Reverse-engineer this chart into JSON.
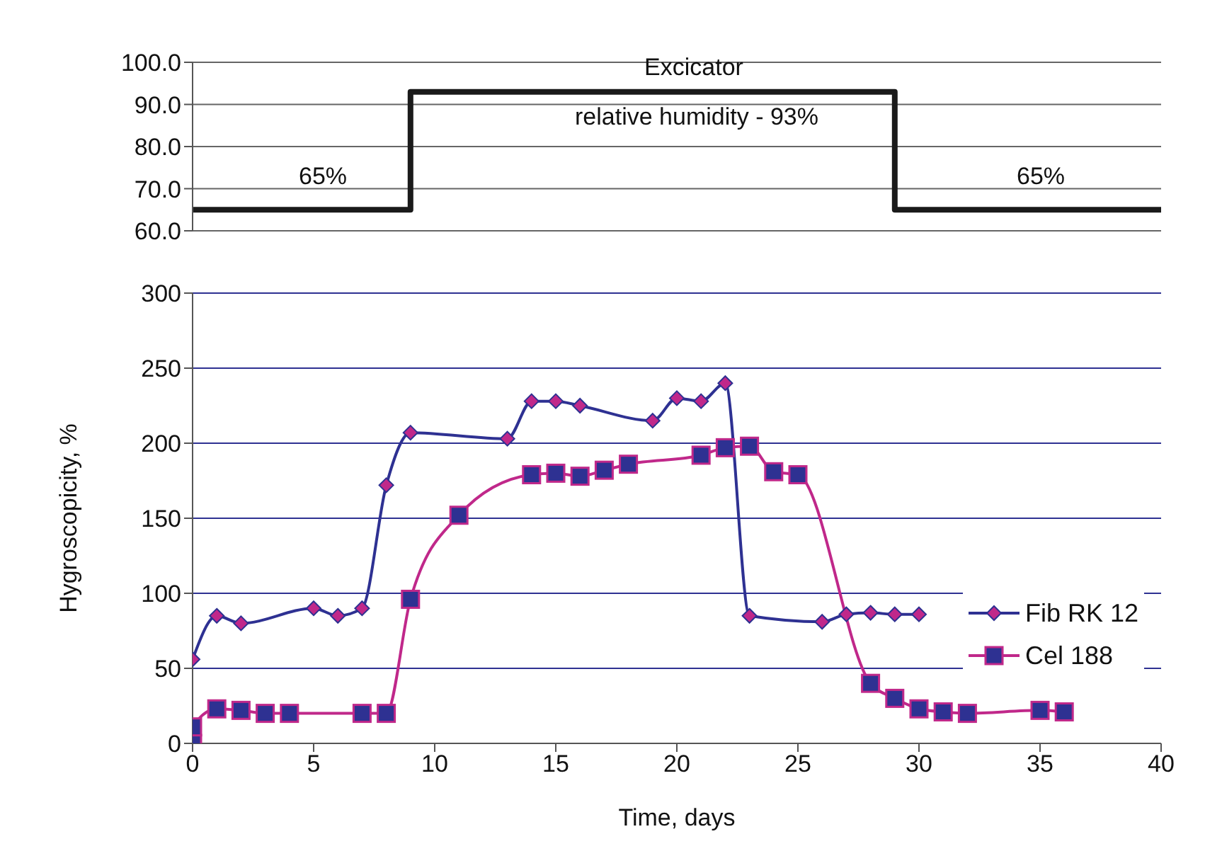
{
  "chart_data": [
    {
      "type": "step",
      "xlim": [
        0,
        40
      ],
      "ylim": [
        60,
        100
      ],
      "yticks": [
        {
          "value": 60,
          "label": "60.0"
        },
        {
          "value": 70,
          "label": "70.0"
        },
        {
          "value": 80,
          "label": "80.0"
        },
        {
          "value": 90,
          "label": "90.0"
        },
        {
          "value": 100,
          "label": "100.0"
        }
      ],
      "tick_labels": "y",
      "grid": "y",
      "legend": false,
      "marker": "none",
      "series": [
        {
          "color": "#1a1a1a",
          "x": [
            0,
            9,
            29,
            40
          ],
          "values": [
            65,
            93,
            65,
            65
          ]
        }
      ],
      "annotations": [
        "65%",
        "Excicator",
        "relative humidity - 93%",
        "65%"
      ]
    },
    {
      "type": "line",
      "xlabel": "Time, days",
      "ylabel": "Hygroscopicity, %",
      "xlim": [
        0,
        40
      ],
      "xticks": [
        0,
        5,
        10,
        15,
        20,
        25,
        30,
        35,
        40
      ],
      "ylim": [
        0,
        300
      ],
      "yticks": [
        0,
        50,
        100,
        150,
        200,
        250,
        300
      ],
      "grid": "y",
      "legend": "right",
      "series": [
        {
          "name": "Fib RK 12",
          "color": "#2e3192",
          "marker": "diamond",
          "x": [
            0,
            1,
            2,
            5,
            6,
            7,
            8,
            9,
            13,
            14,
            15,
            16,
            19,
            20,
            21,
            22,
            23,
            26,
            27,
            28,
            29,
            30
          ],
          "values": [
            56,
            85,
            80,
            90,
            85,
            90,
            172,
            207,
            203,
            228,
            228,
            225,
            215,
            230,
            228,
            240,
            85,
            81,
            86,
            87,
            86,
            86
          ]
        },
        {
          "name": "Cel 188",
          "color": "#c0288a",
          "marker": "square",
          "x": [
            0,
            0,
            1,
            2,
            3,
            4,
            7,
            8,
            9,
            11,
            14,
            15,
            16,
            17,
            18,
            21,
            22,
            23,
            24,
            25,
            28,
            29,
            30,
            31,
            32,
            35,
            36
          ],
          "values": [
            0,
            11,
            23,
            22,
            20,
            20,
            20,
            20,
            96,
            152,
            179,
            180,
            178,
            182,
            186,
            192,
            197,
            198,
            181,
            179,
            40,
            30,
            23,
            21,
            20,
            22,
            21
          ]
        }
      ]
    }
  ]
}
